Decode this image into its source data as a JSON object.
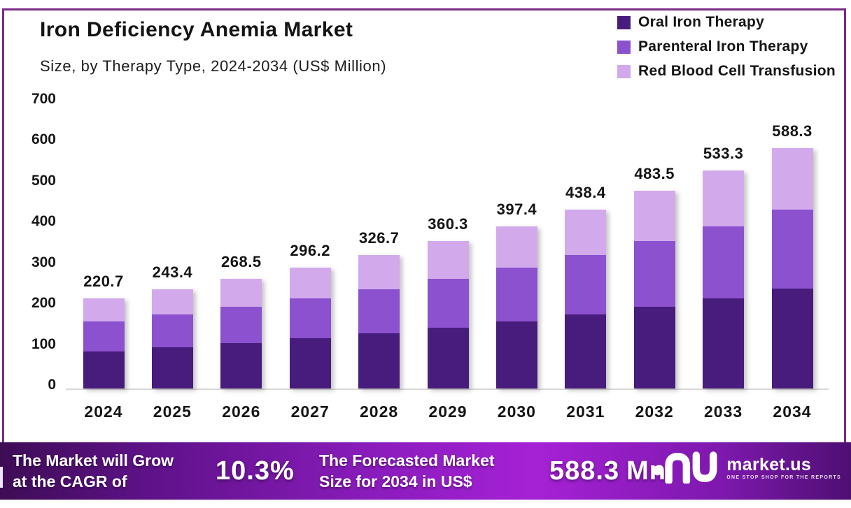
{
  "header": {
    "title": "Iron Deficiency Anemia Market",
    "subtitle": "Size, by Therapy Type, 2024-2034 (US$ Million)"
  },
  "legend": {
    "position": "top-right",
    "items": [
      {
        "label": "Oral Iron Therapy",
        "color": "#471c7c"
      },
      {
        "label": "Parenteral Iron Therapy",
        "color": "#8b51ce"
      },
      {
        "label": "Red Blood Cell Transfusion",
        "color": "#d2aaec"
      }
    ]
  },
  "chart_data": {
    "type": "bar",
    "stacked": true,
    "title": "Iron Deficiency Anemia Market",
    "subtitle": "Size, by Therapy Type, 2024-2034 (US$ Million)",
    "xlabel": "",
    "ylabel": "US$ Million",
    "ylim": [
      0,
      700
    ],
    "yticks": [
      "0",
      "100",
      "200",
      "300",
      "400",
      "500",
      "600",
      "700"
    ],
    "grid": false,
    "categories": [
      "2024",
      "2025",
      "2026",
      "2027",
      "2028",
      "2029",
      "2030",
      "2031",
      "2032",
      "2033",
      "2034"
    ],
    "totals": [
      220.7,
      243.4,
      268.5,
      296.2,
      326.7,
      360.3,
      397.4,
      438.4,
      483.5,
      533.3,
      588.3
    ],
    "total_labels": [
      "220.7",
      "243.4",
      "268.5",
      "296.2",
      "326.7",
      "360.3",
      "397.4",
      "438.4",
      "483.5",
      "533.3",
      "588.3"
    ],
    "series": [
      {
        "name": "Oral Iron Therapy",
        "color": "#471c7c",
        "values": [
          91.0,
          100.8,
          111.4,
          122.9,
          135.6,
          149.5,
          164.9,
          181.9,
          200.7,
          221.3,
          244.1
        ]
      },
      {
        "name": "Parenteral Iron Therapy",
        "color": "#8b51ce",
        "values": [
          73.5,
          80.6,
          88.6,
          97.7,
          107.8,
          118.9,
          131.1,
          144.7,
          159.6,
          176.0,
          194.1
        ]
      },
      {
        "name": "Red Blood Cell Transfusion",
        "color": "#d2aaec",
        "values": [
          56.2,
          62.0,
          68.5,
          75.6,
          83.3,
          91.9,
          101.4,
          111.8,
          123.2,
          136.0,
          150.1
        ]
      }
    ]
  },
  "banner": {
    "cagr_label_line1": "The Market will Grow",
    "cagr_label_line2": "at the CAGR of",
    "cagr_value": "10.3%",
    "forecast_label_line1": "The Forecasted Market",
    "forecast_label_line2": "Size for 2034 in US$",
    "forecast_value": "588.3",
    "forecast_unit": "Mn",
    "logo_brand": "market.us",
    "logo_tagline": "ONE STOP SHOP FOR THE REPORTS"
  },
  "colors": {
    "frame_border": "#7a2b86",
    "axis_line": "#d8d8d8",
    "banner_gradient_left": "#3e0c55",
    "banner_gradient_mid": "#a521d5",
    "banner_gradient_right": "#4e0f72",
    "text_dark": "#141414",
    "banner_text": "#ffffff"
  }
}
